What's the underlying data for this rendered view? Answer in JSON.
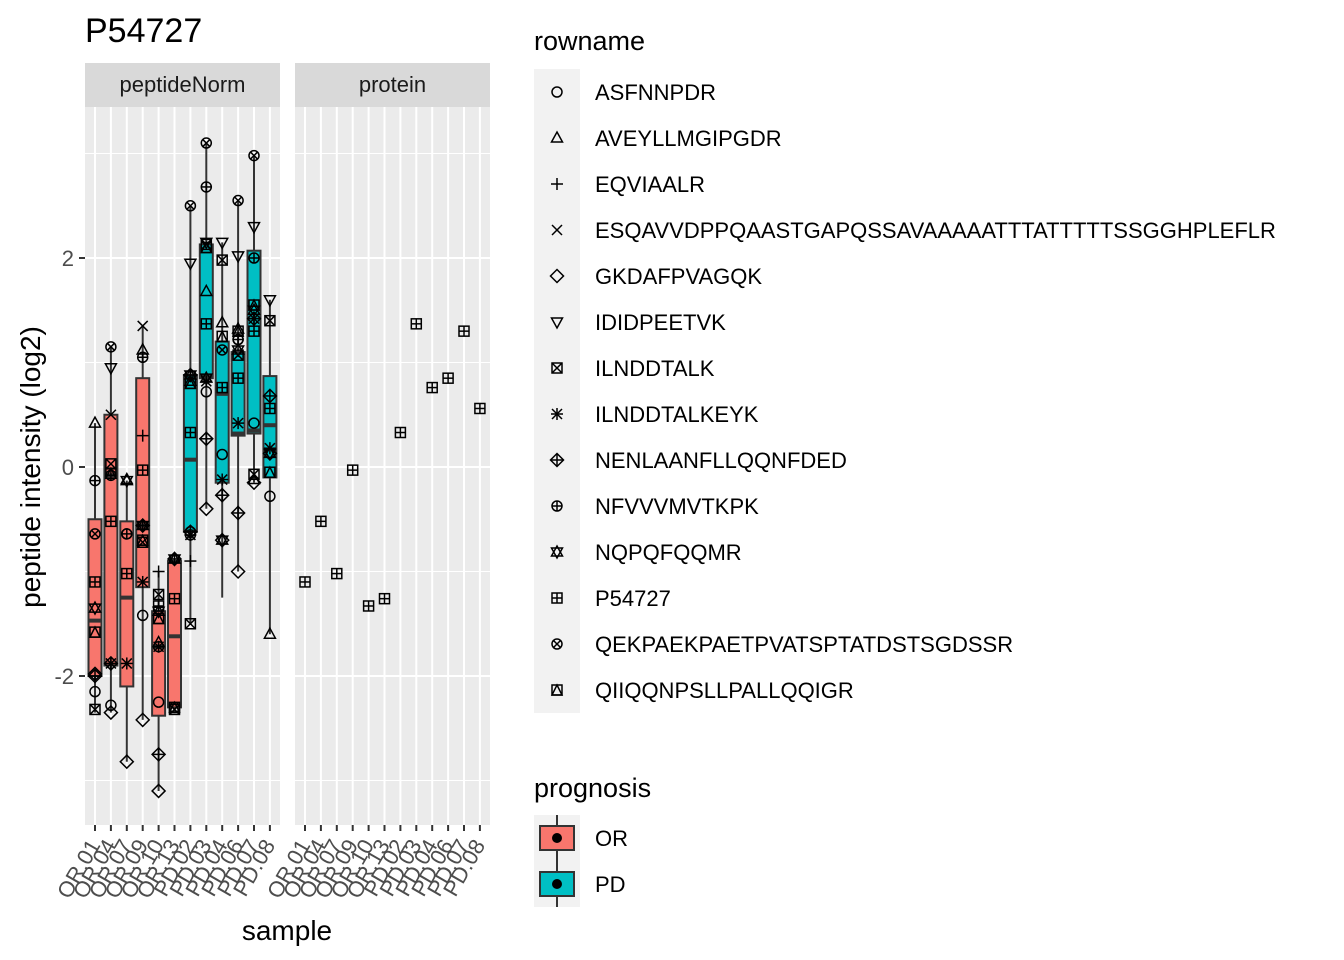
{
  "chart_data": {
    "type": "box",
    "title": "P54727",
    "xlabel": "sample",
    "ylabel": "peptide intensity (log2)",
    "ylim": [
      -3.45,
      3.3
    ],
    "y_ticks": [
      -2,
      0,
      2
    ],
    "y_tick_labels": [
      "-2",
      "0",
      "2"
    ],
    "grid": true,
    "legend_position": "right",
    "categories": [
      "OR.01",
      "OR.04",
      "OR.07",
      "OR.09",
      "OR.10",
      "OR.13",
      "PD.02",
      "PD.03",
      "PD.04",
      "PD.06",
      "PD.07",
      "PD.08"
    ],
    "panels": [
      "peptideNorm",
      "protein"
    ],
    "prognosis_of_sample": [
      "OR",
      "OR",
      "OR",
      "OR",
      "OR",
      "OR",
      "PD",
      "PD",
      "PD",
      "PD",
      "PD",
      "PD"
    ],
    "prognosis_colors": {
      "OR": "#F8766D",
      "PD": "#00BFC4"
    },
    "boxes": [
      {
        "q1": -2.0,
        "median": -1.47,
        "q3": -0.5,
        "lo": -2.35,
        "hi": 0.42
      },
      {
        "q1": -1.9,
        "median": -0.08,
        "q3": 0.5,
        "lo": -2.35,
        "hi": 1.15
      },
      {
        "q1": -2.1,
        "median": -1.25,
        "q3": -0.52,
        "lo": -2.82,
        "hi": -0.13
      },
      {
        "q1": -1.15,
        "median": -0.56,
        "q3": 0.85,
        "lo": -2.42,
        "hi": 1.35
      },
      {
        "q1": -2.38,
        "median": -1.72,
        "q3": -1.38,
        "lo": -3.1,
        "hi": -1.0
      },
      {
        "q1": -2.3,
        "median": -1.62,
        "q3": -0.9,
        "lo": -2.35,
        "hi": -0.88
      },
      {
        "q1": -0.62,
        "median": 0.07,
        "q3": 0.88,
        "lo": -1.5,
        "hi": 2.5
      },
      {
        "q1": 0.85,
        "median": 0.87,
        "q3": 2.13,
        "lo": -0.4,
        "hi": 3.1
      },
      {
        "q1": -0.15,
        "median": 0.7,
        "q3": 1.2,
        "lo": -1.25,
        "hi": 2.15
      },
      {
        "q1": 0.3,
        "median": 0.32,
        "q3": 1.1,
        "lo": -1.0,
        "hi": 2.55
      },
      {
        "q1": 0.32,
        "median": 0.35,
        "q3": 2.07,
        "lo": -0.15,
        "hi": 2.98
      },
      {
        "q1": -0.1,
        "median": 0.4,
        "q3": 0.87,
        "lo": -1.6,
        "hi": 1.6
      }
    ],
    "rowname_series": [
      {
        "name": "ASFNNPDR",
        "values": [
          -2.15,
          -2.28,
          -0.64,
          -1.42,
          -2.25,
          -2.3,
          -0.65,
          0.72,
          0.12,
          1.22,
          0.42,
          -0.28
        ]
      },
      {
        "name": "AVEYLLMGIPGDR",
        "values": [
          0.42,
          null,
          -0.12,
          1.12,
          -1.68,
          -0.88,
          0.82,
          1.68,
          1.38,
          1.32,
          -0.12,
          -1.6
        ]
      },
      {
        "name": "EQVIAALR",
        "values": [
          null,
          null,
          null,
          0.3,
          -1.0,
          null,
          -0.9,
          null,
          null,
          null,
          null,
          null
        ]
      },
      {
        "name": "ESQAVVDPPQAASTGAPQSSAVAAAAATTTATTTTTSSGGHPLEFLR",
        "values": [
          null,
          0.5,
          null,
          1.35,
          null,
          null,
          null,
          null,
          null,
          null,
          null,
          null
        ]
      },
      {
        "name": "GKDAFPVAGQK",
        "values": [
          -1.98,
          -2.35,
          -2.82,
          -2.42,
          -3.1,
          null,
          -0.62,
          -0.4,
          -0.7,
          -1.0,
          -0.15,
          0.13
        ]
      },
      {
        "name": "IDIDPEETVK",
        "values": [
          null,
          0.95,
          null,
          null,
          null,
          null,
          1.95,
          2.15,
          2.15,
          2.02,
          2.3,
          1.6
        ]
      },
      {
        "name": "ILNDDTALK",
        "values": [
          -2.32,
          0.03,
          null,
          -0.72,
          -1.22,
          -2.32,
          -1.5,
          2.13,
          1.98,
          1.07,
          -0.07,
          1.4
        ]
      },
      {
        "name": "ILNDDTALKEYK",
        "values": [
          null,
          -1.88,
          -1.88,
          -1.1,
          -1.72,
          null,
          -0.65,
          0.82,
          -0.12,
          0.42,
          1.42,
          0.18
        ]
      },
      {
        "name": "NENLAANFLLQQNFDED",
        "values": [
          -2.0,
          -1.88,
          null,
          -0.56,
          -2.75,
          -0.88,
          0.88,
          0.27,
          -0.27,
          -0.44,
          1.42,
          0.68
        ]
      },
      {
        "name": "NFVVVMVTKPK",
        "values": [
          -0.13,
          -0.08,
          -0.64,
          1.05,
          -1.72,
          null,
          -0.62,
          2.68,
          null,
          1.22,
          2.0,
          null
        ]
      },
      {
        "name": "NQPQFQQMR",
        "values": [
          -1.35,
          null,
          -0.13,
          -0.56,
          -1.38,
          -0.88,
          0.88,
          0.85,
          -0.7,
          1.12,
          1.5,
          0.13
        ]
      },
      {
        "name": "P54727",
        "values": [
          -1.1,
          -0.52,
          -1.02,
          -0.03,
          -1.33,
          -1.26,
          0.33,
          1.37,
          0.76,
          0.85,
          1.3,
          0.56
        ]
      },
      {
        "name": "QEKPAEKPAETPVATSPTATDSTSGDSSR",
        "values": [
          -0.64,
          1.15,
          null,
          null,
          null,
          null,
          2.5,
          3.1,
          1.12,
          2.55,
          2.98,
          null
        ]
      },
      {
        "name": "QIIQQNPSLLPALLQQIGR",
        "values": [
          -1.58,
          -0.06,
          null,
          -0.7,
          -1.45,
          -2.3,
          0.8,
          2.1,
          1.25,
          1.3,
          1.55,
          -0.05
        ]
      }
    ],
    "legend_rowname_title": "rowname",
    "legend_prognosis_title": "prognosis",
    "legend_prognosis_items": [
      "OR",
      "PD"
    ]
  }
}
